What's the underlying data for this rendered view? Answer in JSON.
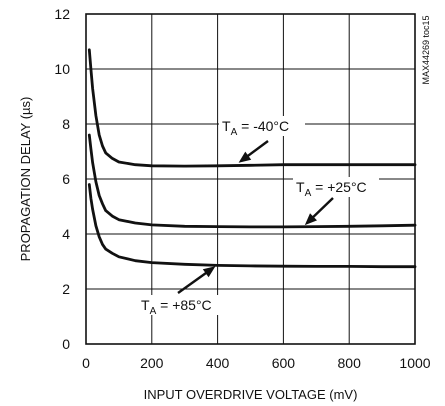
{
  "chart_data": {
    "type": "line",
    "xlabel": "INPUT OVERDRIVE VOLTAGE (mV)",
    "ylabel": "PROPAGATION DELAY (µs)",
    "xlim": [
      0,
      1000
    ],
    "ylim": [
      0,
      12
    ],
    "xticks": [
      0,
      200,
      400,
      600,
      800,
      1000
    ],
    "yticks": [
      0,
      2,
      4,
      6,
      8,
      10,
      12
    ],
    "grid": true,
    "side_label": "MAX44269 toc15",
    "series": [
      {
        "name": "TA = -40°C",
        "label_main": "T",
        "label_sub": "A",
        "label_rest": " = -40°C",
        "x": [
          10,
          15,
          20,
          30,
          40,
          50,
          60,
          80,
          100,
          150,
          200,
          300,
          400,
          500,
          600,
          700,
          800,
          900,
          1000
        ],
        "y": [
          10.7,
          10.0,
          9.3,
          8.3,
          7.6,
          7.2,
          6.95,
          6.75,
          6.62,
          6.52,
          6.48,
          6.47,
          6.48,
          6.5,
          6.52,
          6.52,
          6.52,
          6.52,
          6.52
        ]
      },
      {
        "name": "TA = +25°C",
        "label_main": "T",
        "label_sub": "A",
        "label_rest": " = +25°C",
        "x": [
          10,
          15,
          20,
          30,
          40,
          50,
          60,
          80,
          100,
          150,
          200,
          300,
          400,
          500,
          600,
          700,
          800,
          900,
          1000
        ],
        "y": [
          7.6,
          7.1,
          6.6,
          5.9,
          5.4,
          5.1,
          4.85,
          4.65,
          4.52,
          4.4,
          4.33,
          4.28,
          4.27,
          4.26,
          4.26,
          4.27,
          4.28,
          4.3,
          4.32
        ]
      },
      {
        "name": "TA = +85°C",
        "label_main": "T",
        "label_sub": "A",
        "label_rest": " = +85°C",
        "x": [
          10,
          15,
          20,
          30,
          40,
          50,
          60,
          80,
          100,
          150,
          200,
          300,
          400,
          500,
          600,
          700,
          800,
          900,
          1000
        ],
        "y": [
          5.8,
          5.3,
          4.9,
          4.3,
          3.9,
          3.62,
          3.45,
          3.3,
          3.17,
          3.03,
          2.96,
          2.9,
          2.86,
          2.84,
          2.83,
          2.82,
          2.82,
          2.81,
          2.81
        ]
      }
    ]
  }
}
